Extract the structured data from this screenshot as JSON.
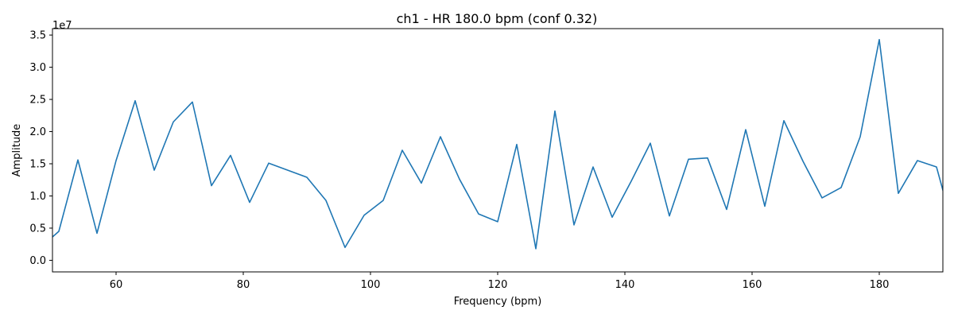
{
  "chart_data": {
    "type": "line",
    "title": "ch1 - HR 180.0 bpm  (conf 0.32)",
    "xlabel": "Frequency (bpm)",
    "ylabel": "Amplitude",
    "y_offset_label": "1e7",
    "xlim": [
      50,
      190
    ],
    "ylim": [
      -1800000.0,
      36000000.0
    ],
    "x_ticks": [
      60,
      80,
      100,
      120,
      140,
      160,
      180
    ],
    "y_ticks": [
      0,
      5000000,
      10000000,
      15000000,
      20000000,
      25000000,
      30000000,
      35000000
    ],
    "y_tick_labels": [
      "0.0",
      "0.5",
      "1.0",
      "1.5",
      "2.0",
      "2.5",
      "3.0",
      "3.5"
    ],
    "grid": false,
    "line_color": "#1f77b4",
    "series": [
      {
        "x": [
          48,
          51,
          54,
          57,
          60,
          63,
          66,
          69,
          72,
          75,
          78,
          81,
          84,
          87,
          90,
          93,
          96,
          99,
          102,
          105,
          108,
          111,
          114,
          117,
          120,
          123,
          126,
          129,
          132,
          135,
          138,
          141,
          144,
          147,
          150,
          153,
          156,
          159,
          162,
          165,
          168,
          171,
          174,
          177,
          180,
          183,
          186,
          189,
          192
        ],
        "values": [
          1900000,
          4500000,
          15600000,
          4200000,
          15500000,
          24800000,
          14000000,
          21500000,
          24600000,
          11600000,
          16300000,
          9000000,
          15100000,
          14000000,
          12900000,
          9300000,
          2000000,
          7000000,
          9300000,
          17100000,
          12000000,
          19200000,
          12600000,
          7200000,
          6000000,
          18000000,
          1800000,
          23200000,
          5500000,
          14500000,
          6700000,
          12300000,
          18200000,
          6900000,
          15700000,
          15900000,
          7900000,
          20300000,
          8400000,
          21700000,
          15400000,
          9700000,
          11300000,
          19200000,
          34300000,
          10400000,
          15500000,
          14500000,
          3700000
        ]
      }
    ]
  }
}
